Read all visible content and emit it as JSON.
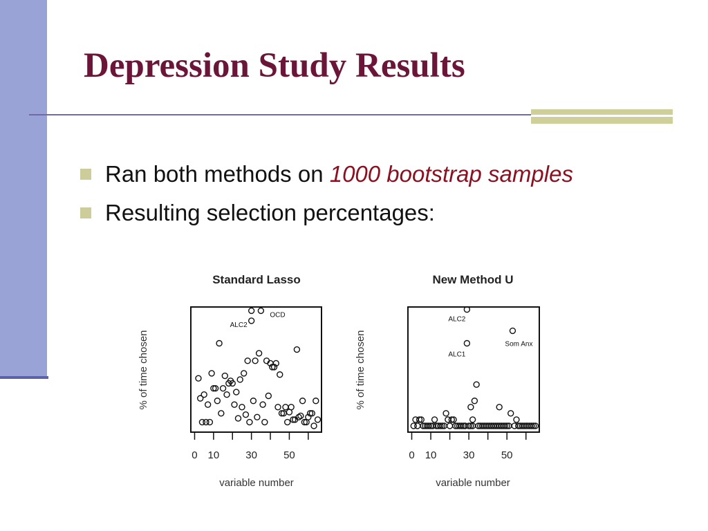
{
  "slide": {
    "title": "Depression Study Results",
    "bullets": [
      {
        "text": "Ran both methods on ",
        "emphasis": "1000 bootstrap samples"
      },
      {
        "text": "Resulting selection percentages:",
        "emphasis": ""
      }
    ]
  },
  "colors": {
    "title": "#6b1538",
    "emphasis": "#8b1020",
    "left_bar": "#99a3d6",
    "accent": "#cfcf9a"
  },
  "chart_data": [
    {
      "type": "scatter",
      "title": "Standard Lasso",
      "xlabel": "variable number",
      "ylabel": "% of time chosen",
      "xlim": [
        -2,
        67
      ],
      "ylim": [
        0,
        100
      ],
      "xticks": [
        0,
        10,
        30,
        50
      ],
      "yticks": [],
      "grid": false,
      "annotations": [
        {
          "label": "OCD",
          "x": 35,
          "y": 97
        },
        {
          "label": "ALC2",
          "x": 30,
          "y": 89
        }
      ],
      "points": [
        [
          2,
          43
        ],
        [
          3,
          27
        ],
        [
          4,
          8
        ],
        [
          5,
          30
        ],
        [
          6,
          8
        ],
        [
          7,
          22
        ],
        [
          8,
          8
        ],
        [
          9,
          47
        ],
        [
          10,
          35
        ],
        [
          11,
          35
        ],
        [
          12,
          25
        ],
        [
          13,
          71
        ],
        [
          14,
          15
        ],
        [
          15,
          35
        ],
        [
          16,
          45
        ],
        [
          17,
          30
        ],
        [
          18,
          39
        ],
        [
          19,
          41
        ],
        [
          20,
          39
        ],
        [
          21,
          22
        ],
        [
          22,
          32
        ],
        [
          23,
          11
        ],
        [
          24,
          42
        ],
        [
          25,
          20
        ],
        [
          26,
          47
        ],
        [
          27,
          14
        ],
        [
          28,
          57
        ],
        [
          29,
          8
        ],
        [
          30,
          97
        ],
        [
          31,
          25
        ],
        [
          32,
          57
        ],
        [
          33,
          12
        ],
        [
          34,
          63
        ],
        [
          35,
          97
        ],
        [
          36,
          22
        ],
        [
          37,
          8
        ],
        [
          38,
          57
        ],
        [
          39,
          29
        ],
        [
          40,
          55
        ],
        [
          41,
          52
        ],
        [
          42,
          52
        ],
        [
          43,
          55
        ],
        [
          44,
          20
        ],
        [
          45,
          46
        ],
        [
          46,
          15
        ],
        [
          47,
          15
        ],
        [
          48,
          20
        ],
        [
          49,
          8
        ],
        [
          50,
          16
        ],
        [
          51,
          20
        ],
        [
          52,
          10
        ],
        [
          53,
          10
        ],
        [
          54,
          66
        ],
        [
          55,
          12
        ],
        [
          56,
          13
        ],
        [
          57,
          25
        ],
        [
          58,
          8
        ],
        [
          59,
          8
        ],
        [
          60,
          12
        ],
        [
          61,
          15
        ],
        [
          62,
          15
        ],
        [
          63,
          5
        ],
        [
          64,
          25
        ],
        [
          65,
          10
        ],
        [
          30,
          89
        ]
      ]
    },
    {
      "type": "scatter",
      "title": "New Method U",
      "xlabel": "variable number",
      "ylabel": "% of time chosen",
      "xlim": [
        -2,
        67
      ],
      "ylim": [
        0,
        100
      ],
      "xticks": [
        0,
        10,
        30,
        50
      ],
      "yticks": [],
      "grid": false,
      "annotations": [
        {
          "label": "ALC2",
          "x": 29,
          "y": 98
        },
        {
          "label": "Som Anx",
          "x": 53,
          "y": 81
        },
        {
          "label": "ALC1",
          "x": 29,
          "y": 71
        }
      ],
      "points": [
        [
          1,
          5
        ],
        [
          2,
          10
        ],
        [
          3,
          5
        ],
        [
          4,
          10
        ],
        [
          5,
          10
        ],
        [
          6,
          5
        ],
        [
          7,
          5
        ],
        [
          8,
          5
        ],
        [
          9,
          5
        ],
        [
          10,
          5
        ],
        [
          11,
          5
        ],
        [
          12,
          10
        ],
        [
          13,
          5
        ],
        [
          14,
          5
        ],
        [
          15,
          5
        ],
        [
          16,
          5
        ],
        [
          17,
          5
        ],
        [
          18,
          15
        ],
        [
          19,
          10
        ],
        [
          20,
          5
        ],
        [
          21,
          10
        ],
        [
          22,
          10
        ],
        [
          23,
          5
        ],
        [
          24,
          5
        ],
        [
          25,
          5
        ],
        [
          26,
          5
        ],
        [
          27,
          5
        ],
        [
          28,
          5
        ],
        [
          29,
          71
        ],
        [
          30,
          5
        ],
        [
          31,
          5
        ],
        [
          32,
          5
        ],
        [
          33,
          25
        ],
        [
          34,
          38
        ],
        [
          35,
          5
        ],
        [
          36,
          5
        ],
        [
          37,
          5
        ],
        [
          38,
          5
        ],
        [
          39,
          5
        ],
        [
          40,
          5
        ],
        [
          41,
          5
        ],
        [
          42,
          5
        ],
        [
          43,
          5
        ],
        [
          44,
          5
        ],
        [
          45,
          5
        ],
        [
          46,
          5
        ],
        [
          47,
          5
        ],
        [
          48,
          5
        ],
        [
          49,
          5
        ],
        [
          50,
          5
        ],
        [
          51,
          5
        ],
        [
          52,
          15
        ],
        [
          53,
          81
        ],
        [
          54,
          5
        ],
        [
          55,
          10
        ],
        [
          56,
          5
        ],
        [
          57,
          5
        ],
        [
          58,
          5
        ],
        [
          59,
          5
        ],
        [
          60,
          5
        ],
        [
          61,
          5
        ],
        [
          62,
          5
        ],
        [
          63,
          5
        ],
        [
          64,
          5
        ],
        [
          65,
          5
        ],
        [
          29,
          98
        ],
        [
          28,
          5
        ],
        [
          46,
          20
        ],
        [
          31,
          20
        ],
        [
          32,
          10
        ]
      ]
    }
  ]
}
